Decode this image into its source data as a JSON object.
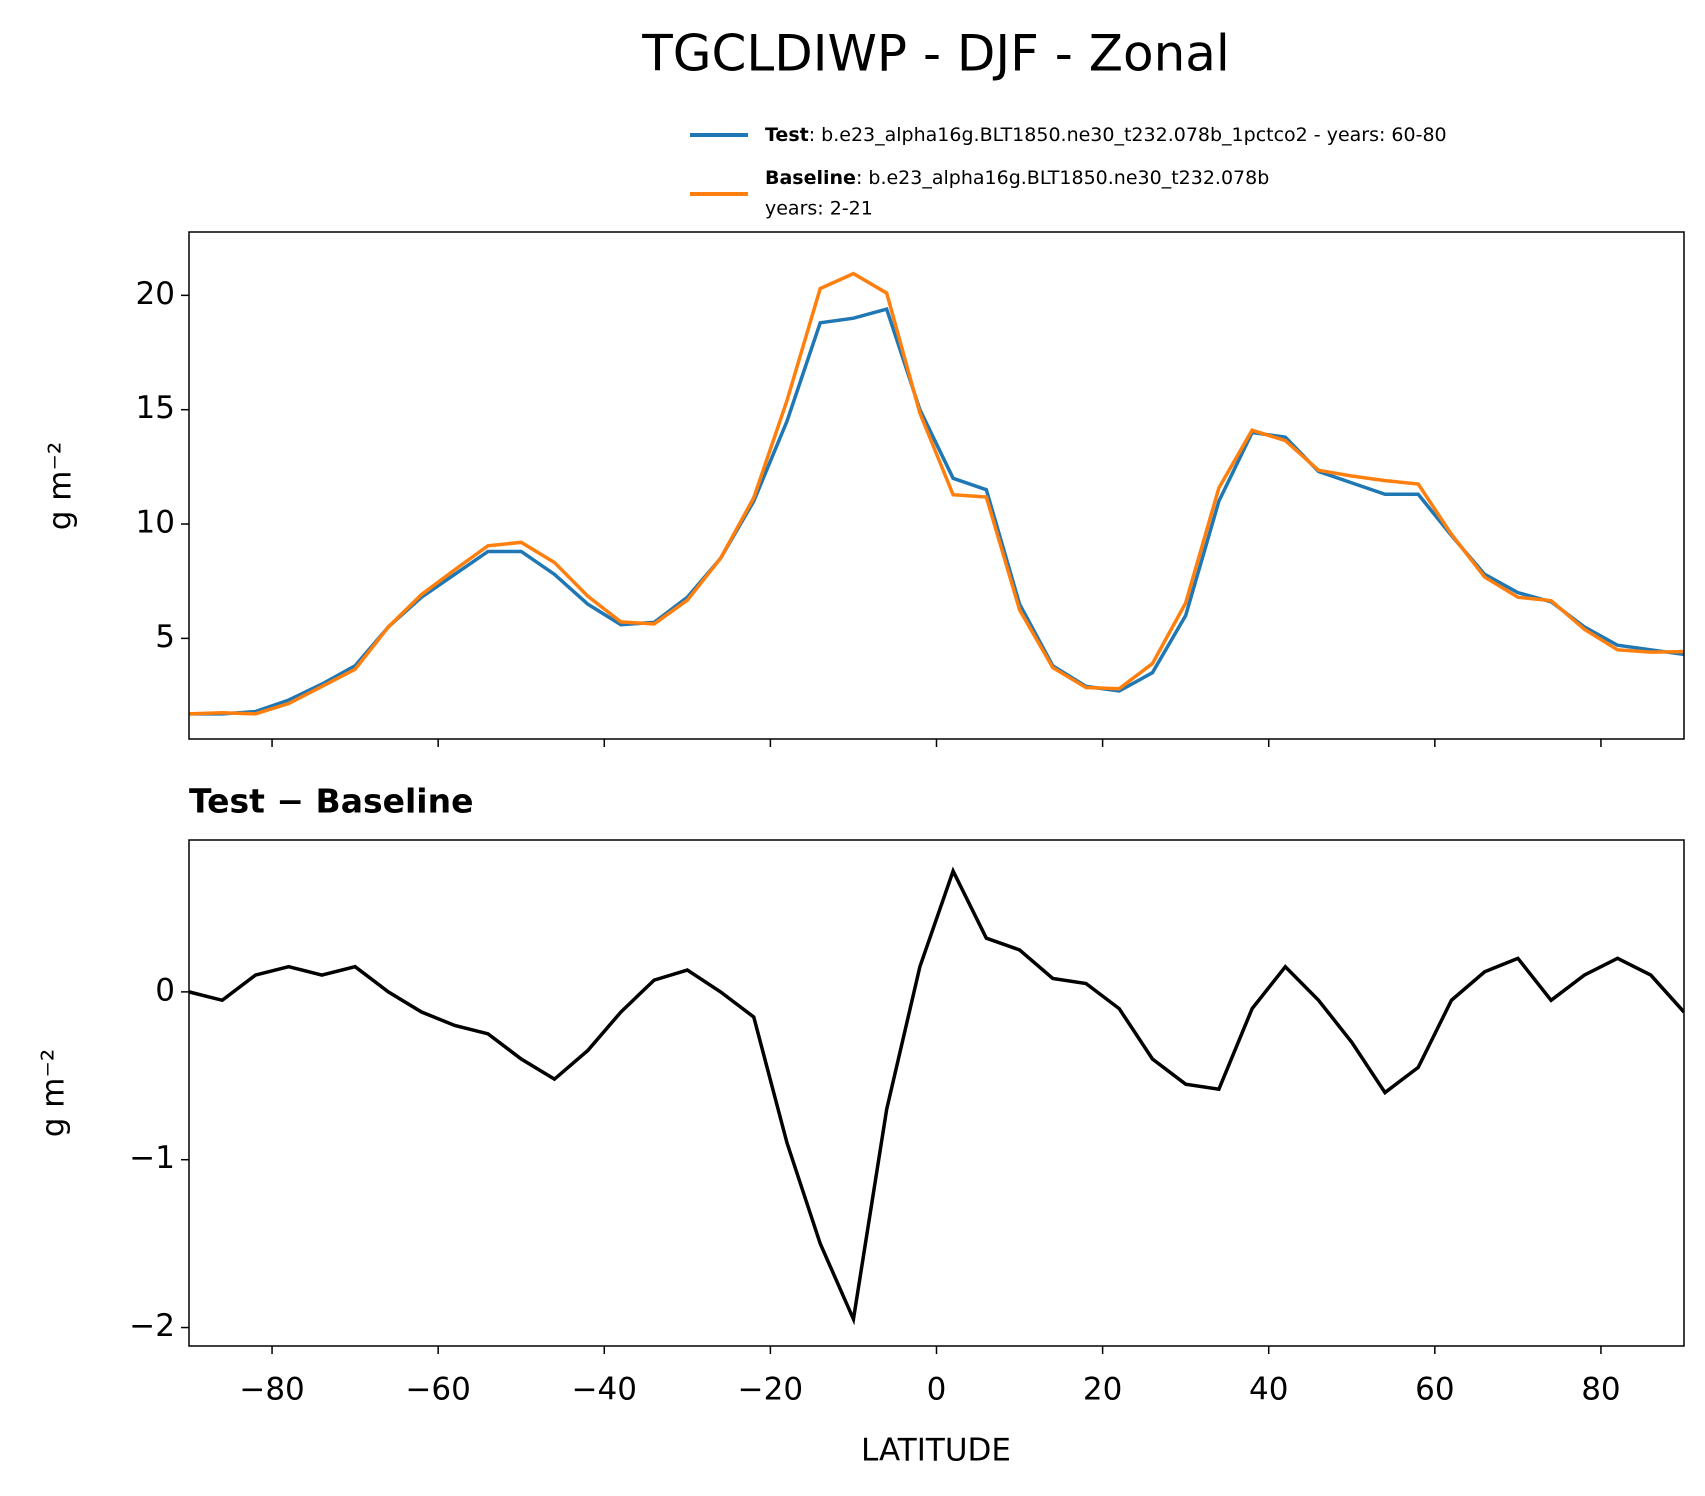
{
  "chart_data": [
    {
      "type": "line",
      "title": "TGCLDIWP - DJF - Zonal",
      "ylabel": "g m⁻²",
      "x": [
        -90,
        -86,
        -82,
        -78,
        -74,
        -70,
        -66,
        -62,
        -58,
        -54,
        -50,
        -46,
        -42,
        -38,
        -34,
        -30,
        -26,
        -22,
        -18,
        -14,
        -10,
        -6,
        -2,
        2,
        6,
        10,
        14,
        18,
        22,
        26,
        30,
        34,
        38,
        42,
        46,
        50,
        54,
        58,
        62,
        66,
        70,
        74,
        78,
        82,
        86,
        90
      ],
      "series": [
        {
          "name": "Test",
          "label": [
            ": b.e23_alpha16g.BLT1850.ne30_t232.078b_1pctco2 - years: 60-80"
          ],
          "color": "#1f77b4",
          "values": [
            1.7,
            1.7,
            1.8,
            2.3,
            3.0,
            3.8,
            5.5,
            6.8,
            7.8,
            8.8,
            8.8,
            7.8,
            6.5,
            5.6,
            5.7,
            6.8,
            8.5,
            11.0,
            14.5,
            18.8,
            19.0,
            19.4,
            15.0,
            12.0,
            11.5,
            6.5,
            3.8,
            2.9,
            2.7,
            3.5,
            6.0,
            11.0,
            14.0,
            13.8,
            12.3,
            11.8,
            11.3,
            11.3,
            9.5,
            7.8,
            7.0,
            6.6,
            5.5,
            4.7,
            4.5,
            4.3
          ]
        },
        {
          "name": "Baseline",
          "label": [
            ": b.e23_alpha16g.BLT1850.ne30_t232.078b",
            "years: 2-21"
          ],
          "color": "#ff7f0e",
          "values": [
            1.7,
            1.75,
            1.7,
            2.15,
            2.9,
            3.65,
            5.5,
            6.92,
            8.0,
            9.05,
            9.2,
            8.32,
            6.85,
            5.72,
            5.63,
            6.67,
            8.5,
            11.15,
            15.4,
            20.3,
            20.95,
            20.1,
            14.85,
            11.28,
            11.18,
            6.25,
            3.72,
            2.85,
            2.8,
            3.9,
            6.55,
            11.58,
            14.1,
            13.65,
            12.35,
            12.1,
            11.9,
            11.75,
            9.55,
            7.68,
            6.8,
            6.65,
            5.4,
            4.5,
            4.4,
            4.42
          ]
        }
      ],
      "xlim": [
        -90,
        90
      ],
      "xticks": [
        -80,
        -60,
        -40,
        -20,
        0,
        20,
        40,
        60,
        80
      ],
      "ylim": [
        0.6,
        22.77
      ],
      "yticks": [
        5,
        10,
        15,
        20
      ]
    },
    {
      "type": "line",
      "title": "Test − Baseline",
      "ylabel": "g m⁻²",
      "xlabel": "LATITUDE",
      "x": [
        -90,
        -86,
        -82,
        -78,
        -74,
        -70,
        -66,
        -62,
        -58,
        -54,
        -50,
        -46,
        -42,
        -38,
        -34,
        -30,
        -26,
        -22,
        -18,
        -14,
        -10,
        -6,
        -2,
        2,
        6,
        10,
        14,
        18,
        22,
        26,
        30,
        34,
        38,
        42,
        46,
        50,
        54,
        58,
        62,
        66,
        70,
        74,
        78,
        82,
        86,
        90
      ],
      "color": "#000000",
      "values": [
        0,
        -0.05,
        0.1,
        0.15,
        0.1,
        0.15,
        0.0,
        -0.12,
        -0.2,
        -0.25,
        -0.4,
        -0.52,
        -0.35,
        -0.12,
        0.07,
        0.13,
        0.0,
        -0.15,
        -0.9,
        -1.5,
        -1.95,
        -0.7,
        0.15,
        0.72,
        0.32,
        0.25,
        0.08,
        0.05,
        -0.1,
        -0.4,
        -0.55,
        -0.58,
        -0.1,
        0.15,
        -0.05,
        -0.3,
        -0.6,
        -0.45,
        -0.05,
        0.12,
        0.2,
        -0.05,
        0.1,
        0.2,
        0.1,
        -0.12
      ],
      "xlim": [
        -90,
        90
      ],
      "xticks": [
        {
          "value": -80,
          "label": "−80"
        },
        {
          "value": -60,
          "label": "−60"
        },
        {
          "value": -40,
          "label": "−40"
        },
        {
          "value": -20,
          "label": "−20"
        },
        0,
        20,
        40,
        60,
        80
      ],
      "ylim": [
        -2.11,
        0.905
      ],
      "yticks": [
        {
          "value": -2,
          "label": "−2"
        },
        {
          "value": -1,
          "label": "−1"
        },
        0
      ]
    }
  ]
}
